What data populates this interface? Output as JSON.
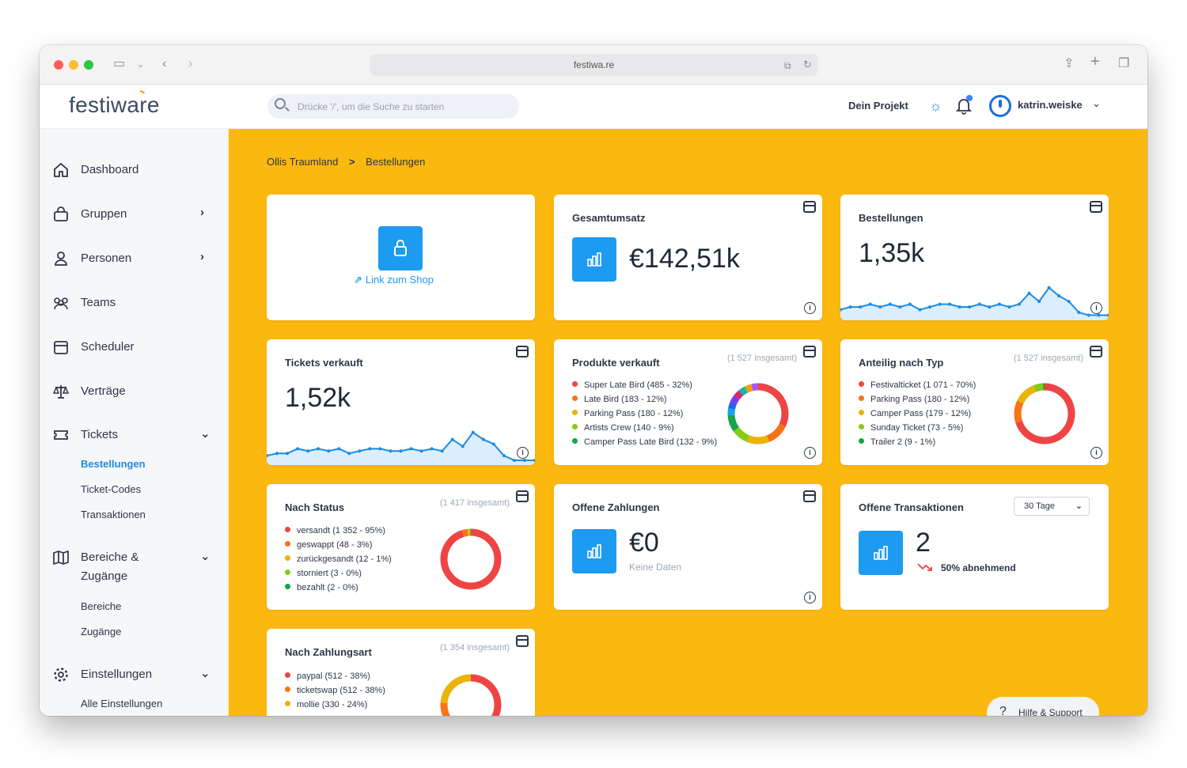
{
  "browser": {
    "url": "festiwa.re",
    "traffic_lights": [
      "#ff5f57",
      "#febc2e",
      "#28c840"
    ]
  },
  "app": {
    "logo": "festiware",
    "search_placeholder": "Drücke '/', um die Suche zu starten",
    "project": "Dein Projekt",
    "user": "katrin.weiske",
    "accent": "#1d9bf0",
    "main_bg": "#fbb80f"
  },
  "sidebar": {
    "items": [
      {
        "label": "Dashboard",
        "icon": "home-icon"
      },
      {
        "label": "Gruppen",
        "icon": "bag-icon",
        "chevron": "›"
      },
      {
        "label": "Personen",
        "icon": "person-icon",
        "chevron": "›"
      },
      {
        "label": "Teams",
        "icon": "team-icon"
      },
      {
        "label": "Scheduler",
        "icon": "calendar-icon"
      },
      {
        "label": "Verträge",
        "icon": "scale-icon"
      },
      {
        "label": "Tickets",
        "icon": "ticket-icon",
        "chevron": "⌄"
      },
      {
        "label": "Bereiche &",
        "label2": "Zugänge",
        "icon": "map-icon",
        "chevron": "⌄"
      },
      {
        "label": "Einstellungen",
        "icon": "gear-icon",
        "chevron": "⌄"
      }
    ],
    "tickets_sub": [
      "Bestellungen",
      "Ticket-Codes",
      "Transaktionen"
    ],
    "bereiche_sub": [
      "Bereiche",
      "Zugänge"
    ],
    "einstellungen_sub": [
      "Alle Einstellungen"
    ]
  },
  "breadcrumb": {
    "root": "Ollis Traumland",
    "sep": ">",
    "current": "Bestellungen"
  },
  "cards": {
    "shop": {
      "link": "Link zum Shop"
    },
    "revenue": {
      "title": "Gesamtumsatz",
      "value": "€142,51k"
    },
    "orders": {
      "title": "Bestellungen",
      "value": "1,35k",
      "spark": [
        3,
        4,
        4,
        5,
        4,
        5,
        4,
        5,
        3,
        4,
        5,
        5,
        4,
        4,
        5,
        4,
        5,
        4,
        5,
        9,
        6,
        11,
        8,
        6,
        2,
        1,
        1,
        1
      ]
    },
    "tickets": {
      "title": "Tickets verkauft",
      "value": "1,52k",
      "spark": [
        3,
        4,
        4,
        6,
        5,
        6,
        5,
        6,
        4,
        5,
        6,
        6,
        5,
        5,
        6,
        5,
        6,
        5,
        10,
        7,
        13,
        10,
        8,
        3,
        1,
        1,
        1
      ]
    },
    "products": {
      "title": "Produkte verkauft",
      "total": "(1 527 insgesamt)",
      "legend": [
        {
          "label": "Super Late Bird (485 - 32%)",
          "color": "#ef4444",
          "pct": 32
        },
        {
          "label": "Late Bird (183 - 12%)",
          "color": "#f97316",
          "pct": 12
        },
        {
          "label": "Parking Pass (180 - 12%)",
          "color": "#eab308",
          "pct": 12
        },
        {
          "label": "Artists Crew (140 - 9%)",
          "color": "#84cc16",
          "pct": 9
        },
        {
          "label": "Camper Pass Late Bird (132 - 9%)",
          "color": "#16a34a",
          "pct": 9
        }
      ],
      "extra_colors": [
        "#0ea5e9",
        "#2563eb",
        "#7c3aed",
        "#db2777",
        "#14b8a6",
        "#f59e0b",
        "#a855f7"
      ]
    },
    "types": {
      "title": "Anteilig nach Typ",
      "total": "(1 527 insgesamt)",
      "legend": [
        {
          "label": "Festivalticket (1 071 - 70%)",
          "color": "#ef4444",
          "pct": 70
        },
        {
          "label": "Parking Pass (180 - 12%)",
          "color": "#f97316",
          "pct": 12
        },
        {
          "label": "Camper Pass (179 - 12%)",
          "color": "#eab308",
          "pct": 12
        },
        {
          "label": "Sunday Ticket (73 - 5%)",
          "color": "#84cc16",
          "pct": 5
        },
        {
          "label": "Trailer 2 (9 - 1%)",
          "color": "#16a34a",
          "pct": 1
        }
      ]
    },
    "status": {
      "title": "Nach Status",
      "total": "(1 417 insgesamt)",
      "legend": [
        {
          "label": "versandt (1 352 - 95%)",
          "color": "#ef4444",
          "pct": 95
        },
        {
          "label": "geswappt (48 - 3%)",
          "color": "#f97316",
          "pct": 3
        },
        {
          "label": "zurückgesandt (12 - 1%)",
          "color": "#eab308",
          "pct": 1
        },
        {
          "label": "storniert (3 - 0%)",
          "color": "#84cc16",
          "pct": 0.5
        },
        {
          "label": "bezahlt (2 - 0%)",
          "color": "#16a34a",
          "pct": 0.5
        }
      ]
    },
    "open_payments": {
      "title": "Offene Zahlungen",
      "value": "€0",
      "sub": "Keine Daten"
    },
    "open_tx": {
      "title": "Offene Transaktionen",
      "select": "30 Tage",
      "value": "2",
      "trend": "50% abnehmend"
    },
    "payment_type": {
      "title": "Nach Zahlungsart",
      "total": "(1 354 insgesamt)",
      "legend": [
        {
          "label": "paypal (512 - 38%)",
          "color": "#ef4444",
          "pct": 38
        },
        {
          "label": "ticketswap (512 - 38%)",
          "color": "#f97316",
          "pct": 38
        },
        {
          "label": "mollie (330 - 24%)",
          "color": "#eab308",
          "pct": 24
        }
      ]
    }
  },
  "help": {
    "label": "Hilfe & Support"
  }
}
